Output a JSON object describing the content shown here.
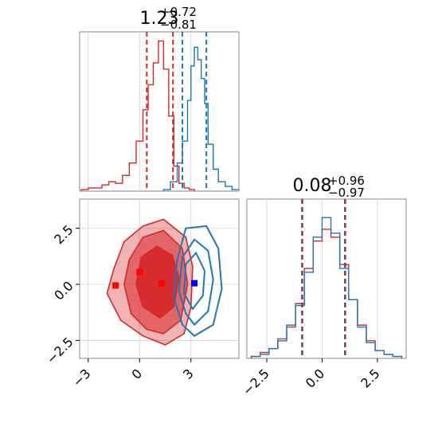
{
  "chart_data": [
    {
      "type": "line",
      "panel": "histogram-param-0",
      "title": {
        "value": "1.23",
        "plus": "+0.72",
        "minus": "−0.81"
      },
      "xlim": [
        -3.5,
        5.8
      ],
      "grid": true,
      "series": [
        {
          "color": "#d62728",
          "x": [
            -3.4,
            -3.0,
            -2.6,
            -2.2,
            -1.8,
            -1.4,
            -1.0,
            -0.6,
            -0.2,
            0.2,
            0.5,
            0.8,
            1.1,
            1.4,
            1.7,
            2.0,
            2.3,
            2.6,
            2.9
          ],
          "values": [
            1,
            2,
            2,
            4,
            6,
            5,
            10,
            18,
            32,
            52,
            68,
            82,
            96,
            78,
            48,
            16,
            5,
            2,
            1
          ],
          "quantiles": [
            0.42,
            1.95
          ]
        },
        {
          "color": "#1f77b4",
          "x": [
            1.4,
            1.8,
            2.2,
            2.5,
            2.8,
            3.0,
            3.2,
            3.4,
            3.6,
            3.8,
            4.0,
            4.3,
            4.6,
            5.0,
            5.4,
            5.8
          ],
          "values": [
            1,
            6,
            18,
            32,
            58,
            80,
            92,
            84,
            72,
            56,
            30,
            14,
            6,
            3,
            1,
            1
          ],
          "quantiles": [
            2.5,
            3.9
          ]
        }
      ]
    },
    {
      "type": "scatter",
      "panel": "contour-2d",
      "xlim": [
        -3.5,
        5.8
      ],
      "ylim": [
        -3.3,
        3.8
      ],
      "xticks": [
        "−3",
        "0",
        "3"
      ],
      "yticks": [
        "2.5",
        "0.0",
        "−2.5"
      ],
      "grid": true,
      "series": [
        {
          "color": "#d62728",
          "levels": 3,
          "outer": [
            [
              1.5,
              -2.7
            ],
            [
              2.6,
              -2.2
            ],
            [
              3.0,
              -1.0
            ],
            [
              3.1,
              0.8
            ],
            [
              2.7,
              2.1
            ],
            [
              1.4,
              2.9
            ],
            [
              0.2,
              2.6
            ],
            [
              -0.9,
              1.9
            ],
            [
              -1.5,
              0.7
            ],
            [
              -1.9,
              -0.4
            ],
            [
              -1.1,
              -1.6
            ],
            [
              0.2,
              -2.3
            ]
          ],
          "middle": [
            [
              1.4,
              -2.2
            ],
            [
              2.4,
              -1.6
            ],
            [
              2.8,
              0.0
            ],
            [
              2.5,
              1.6
            ],
            [
              1.4,
              2.4
            ],
            [
              0.2,
              2.1
            ],
            [
              -0.6,
              1.1
            ],
            [
              -0.9,
              0.0
            ],
            [
              -0.5,
              -1.3
            ],
            [
              0.4,
              -2.0
            ]
          ],
          "inner": [
            [
              1.2,
              -1.5
            ],
            [
              2.0,
              -1.0
            ],
            [
              2.3,
              0.3
            ],
            [
              1.9,
              1.3
            ],
            [
              1.0,
              1.7
            ],
            [
              0.1,
              1.2
            ],
            [
              -0.2,
              0.0
            ],
            [
              0.2,
              -1.0
            ]
          ],
          "markers": [
            [
              -1.4,
              -0.05
            ],
            [
              0.0,
              0.55
            ],
            [
              1.3,
              0.05
            ]
          ]
        },
        {
          "color": "#1f77b4",
          "levels": 3,
          "outer": [
            [
              3.2,
              -2.3
            ],
            [
              4.3,
              -1.8
            ],
            [
              4.8,
              -0.2
            ],
            [
              4.6,
              1.6
            ],
            [
              3.9,
              2.6
            ],
            [
              2.7,
              2.5
            ],
            [
              2.2,
              1.1
            ],
            [
              2.0,
              -0.6
            ],
            [
              2.5,
              -1.8
            ]
          ],
          "middle": [
            [
              3.2,
              -1.8
            ],
            [
              4.0,
              -1.2
            ],
            [
              4.3,
              0.2
            ],
            [
              4.0,
              1.5
            ],
            [
              3.2,
              2.0
            ],
            [
              2.5,
              1.2
            ],
            [
              2.3,
              -0.3
            ],
            [
              2.7,
              -1.3
            ]
          ],
          "inner": [
            [
              3.1,
              -1.1
            ],
            [
              3.7,
              -0.5
            ],
            [
              3.8,
              0.6
            ],
            [
              3.3,
              1.4
            ],
            [
              2.7,
              0.9
            ],
            [
              2.6,
              -0.4
            ]
          ],
          "markers": [
            [
              3.2,
              0.05
            ]
          ]
        }
      ]
    },
    {
      "type": "line",
      "panel": "histogram-param-1",
      "title": {
        "value": "0.08",
        "plus": "+0.96",
        "minus": "−0.97"
      },
      "xlim": [
        -3.4,
        3.8
      ],
      "xticks": [
        "−2.5",
        "0.0",
        "2.5"
      ],
      "grid": true,
      "series": [
        {
          "color": "#d62728",
          "x": [
            -3.2,
            -2.8,
            -2.4,
            -2.0,
            -1.6,
            -1.2,
            -0.8,
            -0.4,
            0.0,
            0.4,
            0.8,
            1.2,
            1.6,
            2.0,
            2.4,
            2.8,
            3.2
          ],
          "values": [
            1,
            3,
            5,
            9,
            16,
            28,
            46,
            60,
            66,
            62,
            48,
            30,
            17,
            9,
            4,
            2,
            1
          ],
          "quantiles": [
            -0.9,
            1.04
          ]
        },
        {
          "color": "#1f77b4",
          "x": [
            -3.2,
            -2.8,
            -2.4,
            -2.0,
            -1.6,
            -1.2,
            -0.8,
            -0.4,
            0.0,
            0.4,
            0.8,
            1.2,
            1.6,
            2.0,
            2.4,
            2.8,
            3.2
          ],
          "values": [
            1,
            2,
            5,
            10,
            17,
            27,
            44,
            62,
            72,
            64,
            46,
            30,
            16,
            8,
            4,
            2,
            1
          ],
          "quantiles": [
            -0.9,
            1.04
          ]
        }
      ]
    }
  ]
}
